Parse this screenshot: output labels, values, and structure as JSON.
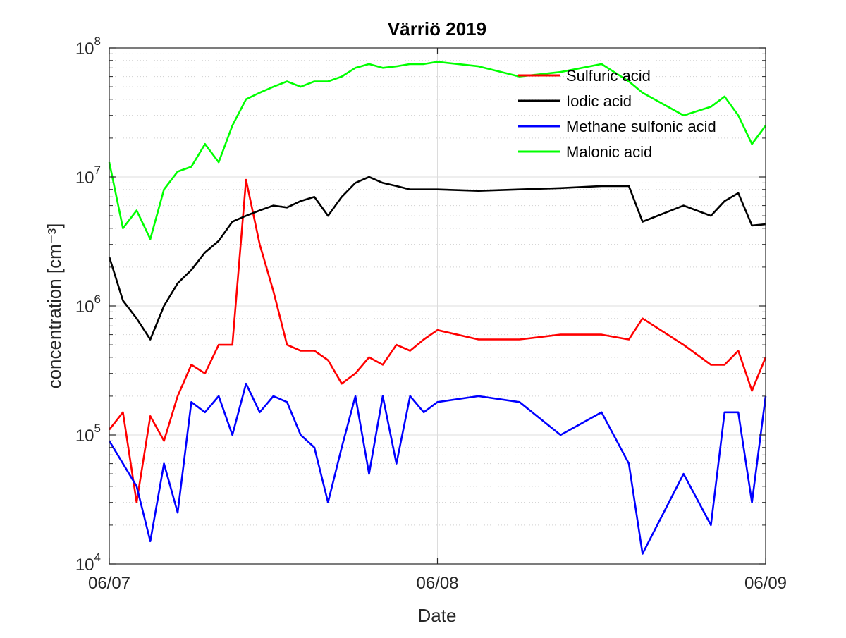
{
  "chart_data": {
    "type": "line",
    "title": "Värriö 2019",
    "xlabel": "Date",
    "ylabel": "concentration [cm⁻³]",
    "yscale": "log",
    "ylim": [
      10000,
      100000000
    ],
    "xlim": [
      "06/07",
      "06/09"
    ],
    "xticks": [
      "06/07",
      "06/08",
      "06/09"
    ],
    "yticks": [
      {
        "value": 10000,
        "label": "10",
        "exp": "4"
      },
      {
        "value": 100000,
        "label": "10",
        "exp": "5"
      },
      {
        "value": 1000000,
        "label": "10",
        "exp": "6"
      },
      {
        "value": 10000000,
        "label": "10",
        "exp": "7"
      },
      {
        "value": 100000000,
        "label": "10",
        "exp": "8"
      }
    ],
    "grid": true,
    "legend_position": "top-right",
    "series": [
      {
        "name": "Sulfuric acid",
        "color": "#ff0000",
        "x": [
          "06/07 00:00",
          "06/07 01:00",
          "06/07 02:00",
          "06/07 03:00",
          "06/07 04:00",
          "06/07 05:00",
          "06/07 06:00",
          "06/07 07:00",
          "06/07 08:00",
          "06/07 09:00",
          "06/07 10:00",
          "06/07 11:00",
          "06/07 12:00",
          "06/07 13:00",
          "06/07 14:00",
          "06/07 15:00",
          "06/07 16:00",
          "06/07 17:00",
          "06/07 18:00",
          "06/07 19:00",
          "06/07 20:00",
          "06/07 21:00",
          "06/07 22:00",
          "06/07 23:00",
          "06/08 00:00",
          "06/08 03:00",
          "06/08 06:00",
          "06/08 09:00",
          "06/08 12:00",
          "06/08 14:00",
          "06/08 15:00",
          "06/08 18:00",
          "06/08 20:00",
          "06/08 21:00",
          "06/08 22:00",
          "06/08 23:00",
          "06/09 00:00"
        ],
        "values": [
          110000,
          150000,
          30000,
          140000,
          90000,
          200000,
          350000,
          300000,
          500000,
          500000,
          9500000,
          3000000,
          1300000,
          500000,
          450000,
          450000,
          380000,
          250000,
          300000,
          400000,
          350000,
          500000,
          450000,
          550000,
          650000,
          550000,
          550000,
          600000,
          600000,
          550000,
          800000,
          500000,
          350000,
          350000,
          450000,
          220000,
          400000
        ]
      },
      {
        "name": "Iodic acid",
        "color": "#000000",
        "x": [
          "06/07 00:00",
          "06/07 01:00",
          "06/07 02:00",
          "06/07 03:00",
          "06/07 04:00",
          "06/07 05:00",
          "06/07 06:00",
          "06/07 07:00",
          "06/07 08:00",
          "06/07 09:00",
          "06/07 10:00",
          "06/07 11:00",
          "06/07 12:00",
          "06/07 13:00",
          "06/07 14:00",
          "06/07 15:00",
          "06/07 16:00",
          "06/07 17:00",
          "06/07 18:00",
          "06/07 19:00",
          "06/07 20:00",
          "06/07 21:00",
          "06/07 22:00",
          "06/07 23:00",
          "06/08 00:00",
          "06/08 03:00",
          "06/08 06:00",
          "06/08 09:00",
          "06/08 12:00",
          "06/08 14:00",
          "06/08 15:00",
          "06/08 18:00",
          "06/08 20:00",
          "06/08 21:00",
          "06/08 22:00",
          "06/08 23:00",
          "06/09 00:00"
        ],
        "values": [
          2400000,
          1100000,
          800000,
          550000,
          1000000,
          1500000,
          1900000,
          2600000,
          3200000,
          4500000,
          5000000,
          5500000,
          6000000,
          5800000,
          6500000,
          7000000,
          5000000,
          7000000,
          9000000,
          10000000,
          9000000,
          8500000,
          8000000,
          8000000,
          8000000,
          7800000,
          8000000,
          8200000,
          8500000,
          8500000,
          4500000,
          6000000,
          5000000,
          6500000,
          7500000,
          4200000,
          4300000
        ]
      },
      {
        "name": "Methane sulfonic acid",
        "color": "#0000ff",
        "x": [
          "06/07 00:00",
          "06/07 01:00",
          "06/07 02:00",
          "06/07 03:00",
          "06/07 04:00",
          "06/07 05:00",
          "06/07 06:00",
          "06/07 07:00",
          "06/07 08:00",
          "06/07 09:00",
          "06/07 10:00",
          "06/07 11:00",
          "06/07 12:00",
          "06/07 13:00",
          "06/07 14:00",
          "06/07 15:00",
          "06/07 16:00",
          "06/07 17:00",
          "06/07 18:00",
          "06/07 19:00",
          "06/07 20:00",
          "06/07 21:00",
          "06/07 22:00",
          "06/07 23:00",
          "06/08 00:00",
          "06/08 03:00",
          "06/08 06:00",
          "06/08 09:00",
          "06/08 12:00",
          "06/08 14:00",
          "06/08 15:00",
          "06/08 18:00",
          "06/08 20:00",
          "06/08 21:00",
          "06/08 22:00",
          "06/08 23:00",
          "06/09 00:00"
        ],
        "values": [
          90000,
          60000,
          40000,
          15000,
          60000,
          25000,
          180000,
          150000,
          200000,
          100000,
          250000,
          150000,
          200000,
          180000,
          100000,
          80000,
          30000,
          80000,
          200000,
          50000,
          200000,
          60000,
          200000,
          150000,
          180000,
          200000,
          180000,
          100000,
          150000,
          60000,
          12000,
          50000,
          20000,
          150000,
          150000,
          30000,
          200000
        ]
      },
      {
        "name": "Malonic acid",
        "color": "#00ff00",
        "x": [
          "06/07 00:00",
          "06/07 01:00",
          "06/07 02:00",
          "06/07 03:00",
          "06/07 04:00",
          "06/07 05:00",
          "06/07 06:00",
          "06/07 07:00",
          "06/07 08:00",
          "06/07 09:00",
          "06/07 10:00",
          "06/07 11:00",
          "06/07 12:00",
          "06/07 13:00",
          "06/07 14:00",
          "06/07 15:00",
          "06/07 16:00",
          "06/07 17:00",
          "06/07 18:00",
          "06/07 19:00",
          "06/07 20:00",
          "06/07 21:00",
          "06/07 22:00",
          "06/07 23:00",
          "06/08 00:00",
          "06/08 03:00",
          "06/08 06:00",
          "06/08 09:00",
          "06/08 12:00",
          "06/08 14:00",
          "06/08 15:00",
          "06/08 18:00",
          "06/08 20:00",
          "06/08 21:00",
          "06/08 22:00",
          "06/08 23:00",
          "06/09 00:00"
        ],
        "values": [
          13000000,
          4000000,
          5500000,
          3300000,
          8000000,
          11000000,
          12000000,
          18000000,
          13000000,
          25000000,
          40000000,
          45000000,
          50000000,
          55000000,
          50000000,
          55000000,
          55000000,
          60000000,
          70000000,
          75000000,
          70000000,
          72000000,
          75000000,
          75000000,
          78000000,
          72000000,
          60000000,
          65000000,
          75000000,
          55000000,
          45000000,
          30000000,
          35000000,
          42000000,
          30000000,
          18000000,
          25000000
        ]
      }
    ]
  }
}
